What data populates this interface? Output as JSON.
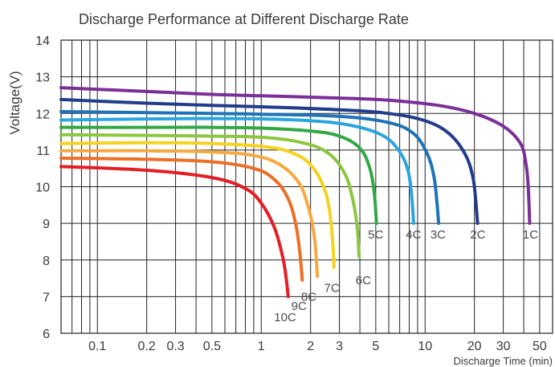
{
  "chart_data": {
    "type": "line",
    "title": "Discharge Performance at Different Discharge Rate",
    "ylabel": "Voltage(V)",
    "xlabel": "Discharge Time (min)",
    "x_scale": "log",
    "xlim": [
      0.06,
      60
    ],
    "ylim": [
      6,
      14
    ],
    "grid": true,
    "x_tick_labels": [
      "0.1",
      "0.2",
      "0.3",
      "0.5",
      "1",
      "2",
      "3",
      "5",
      "10",
      "20",
      "30",
      "50"
    ],
    "x_tick_values": [
      0.1,
      0.2,
      0.3,
      0.5,
      1,
      2,
      3,
      5,
      10,
      20,
      30,
      50
    ],
    "y_tick_values": [
      6,
      7,
      8,
      9,
      10,
      11,
      12,
      13,
      14
    ],
    "series": [
      {
        "name": "1C",
        "color": "#7b2f98",
        "label_at": [
          44,
          9
        ],
        "x": [
          0.06,
          0.2,
          0.5,
          1,
          3,
          6,
          12,
          20,
          30,
          38,
          41,
          42.5,
          43.5
        ],
        "y": [
          12.7,
          12.6,
          12.52,
          12.48,
          12.42,
          12.36,
          12.22,
          12.0,
          11.65,
          11.2,
          10.7,
          10.1,
          9.0
        ]
      },
      {
        "name": "2C",
        "color": "#213c8a",
        "label_at": [
          21,
          9
        ],
        "x": [
          0.06,
          0.2,
          0.5,
          1,
          3,
          6,
          10,
          14,
          17.5,
          19.5,
          20.3,
          20.9
        ],
        "y": [
          12.38,
          12.28,
          12.22,
          12.18,
          12.1,
          12.0,
          11.8,
          11.45,
          10.9,
          10.3,
          9.7,
          9.0
        ]
      },
      {
        "name": "3C",
        "color": "#1e73b8",
        "label_at": [
          12,
          9
        ],
        "x": [
          0.06,
          0.2,
          0.5,
          1,
          3,
          6,
          8.5,
          10.3,
          11.3,
          11.8,
          12.1
        ],
        "y": [
          12.05,
          12.02,
          12.0,
          11.98,
          11.92,
          11.75,
          11.45,
          10.9,
          10.3,
          9.6,
          9.0
        ]
      },
      {
        "name": "4C",
        "color": "#2aa6de",
        "label_at": [
          8.5,
          9
        ],
        "x": [
          0.06,
          0.2,
          0.5,
          1,
          2,
          3.5,
          5.5,
          7,
          7.9,
          8.3,
          8.5
        ],
        "y": [
          11.82,
          11.85,
          11.86,
          11.85,
          11.8,
          11.68,
          11.4,
          10.95,
          10.4,
          9.7,
          9.0
        ]
      },
      {
        "name": "5C",
        "color": "#32a845",
        "label_at": [
          5.0,
          9
        ],
        "x": [
          0.06,
          0.2,
          0.5,
          1,
          2,
          3,
          4,
          4.6,
          4.9,
          5.05
        ],
        "y": [
          11.62,
          11.62,
          11.62,
          11.6,
          11.52,
          11.38,
          11.05,
          10.5,
          9.8,
          9.0
        ]
      },
      {
        "name": "6C",
        "color": "#8dc63f",
        "label_at": [
          4.2,
          7.75
        ],
        "x": [
          0.06,
          0.2,
          0.5,
          1,
          1.7,
          2.5,
          3.2,
          3.6,
          3.85,
          3.95
        ],
        "y": [
          11.42,
          11.4,
          11.38,
          11.35,
          11.22,
          10.95,
          10.4,
          9.7,
          8.9,
          8.1
        ]
      },
      {
        "name": "7C",
        "color": "#f6d220",
        "label_at": [
          2.7,
          7.55
        ],
        "x": [
          0.06,
          0.2,
          0.5,
          1,
          1.5,
          2.0,
          2.4,
          2.6,
          2.72,
          2.78
        ],
        "y": [
          11.18,
          11.2,
          11.18,
          11.1,
          10.95,
          10.6,
          10.0,
          9.4,
          8.6,
          7.8
        ]
      },
      {
        "name": "8C",
        "color": "#f7a941",
        "label_at": [
          1.95,
          7.3
        ],
        "x": [
          0.06,
          0.2,
          0.5,
          0.9,
          1.3,
          1.7,
          1.95,
          2.1,
          2.17,
          2.2
        ],
        "y": [
          10.98,
          10.98,
          10.95,
          10.85,
          10.6,
          10.1,
          9.4,
          8.7,
          8.0,
          7.55
        ]
      },
      {
        "name": "9C",
        "color": "#ec6f25",
        "label_at": [
          1.7,
          7.05
        ],
        "x": [
          0.06,
          0.2,
          0.5,
          0.9,
          1.2,
          1.45,
          1.62,
          1.72,
          1.78
        ],
        "y": [
          10.78,
          10.75,
          10.68,
          10.5,
          10.2,
          9.7,
          9.0,
          8.2,
          7.45
        ]
      },
      {
        "name": "10C",
        "color": "#e31e24",
        "label_at": [
          1.4,
          6.75
        ],
        "x": [
          0.06,
          0.2,
          0.5,
          0.8,
          1.0,
          1.2,
          1.35,
          1.42,
          1.46
        ],
        "y": [
          10.55,
          10.45,
          10.25,
          9.95,
          9.55,
          8.9,
          8.1,
          7.5,
          7.0
        ]
      }
    ]
  }
}
